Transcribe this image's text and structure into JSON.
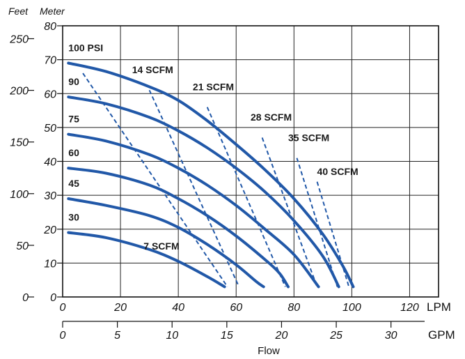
{
  "chart_data": {
    "type": "line",
    "axis_titles": {
      "feet": "Feet",
      "meter": "Meter",
      "flow": "Flow"
    },
    "units": {
      "lpm": "LPM",
      "gpm": "GPM"
    },
    "x_lpm": {
      "ticks": [
        0,
        20,
        40,
        60,
        80,
        100,
        120
      ],
      "range": [
        0,
        130
      ]
    },
    "x_gpm": {
      "ticks": [
        0,
        5,
        10,
        15,
        20,
        25,
        30
      ]
    },
    "y_meter": {
      "ticks": [
        0,
        10,
        20,
        30,
        40,
        50,
        60,
        70,
        80
      ],
      "range": [
        0,
        80
      ]
    },
    "y_feet": {
      "ticks": [
        0,
        50,
        100,
        150,
        200,
        250
      ]
    },
    "grid": true,
    "series": [
      {
        "name": "100 PSI",
        "points": [
          [
            2,
            69
          ],
          [
            15,
            66.5
          ],
          [
            30,
            62
          ],
          [
            40,
            58
          ],
          [
            50,
            52
          ],
          [
            60,
            45
          ],
          [
            70,
            37.5
          ],
          [
            80,
            29
          ],
          [
            90,
            18.5
          ],
          [
            97,
            9
          ],
          [
            100.5,
            3
          ]
        ]
      },
      {
        "name": "90",
        "points": [
          [
            2,
            59
          ],
          [
            15,
            57
          ],
          [
            30,
            53
          ],
          [
            40,
            49
          ],
          [
            50,
            44
          ],
          [
            60,
            38
          ],
          [
            70,
            31
          ],
          [
            80,
            22.5
          ],
          [
            90,
            12
          ],
          [
            95.5,
            3
          ]
        ]
      },
      {
        "name": "75",
        "points": [
          [
            2,
            48
          ],
          [
            15,
            46
          ],
          [
            30,
            42
          ],
          [
            40,
            38
          ],
          [
            50,
            33
          ],
          [
            60,
            27
          ],
          [
            70,
            20
          ],
          [
            80,
            12.5
          ],
          [
            88.5,
            3
          ]
        ]
      },
      {
        "name": "60",
        "points": [
          [
            2,
            38
          ],
          [
            15,
            36.5
          ],
          [
            30,
            33
          ],
          [
            40,
            29
          ],
          [
            50,
            24
          ],
          [
            60,
            18
          ],
          [
            70,
            11
          ],
          [
            75,
            7
          ],
          [
            78,
            3
          ]
        ]
      },
      {
        "name": "45",
        "points": [
          [
            2,
            29
          ],
          [
            15,
            27
          ],
          [
            30,
            24
          ],
          [
            40,
            20.5
          ],
          [
            50,
            15.5
          ],
          [
            60,
            9.5
          ],
          [
            67,
            4.5
          ],
          [
            69.5,
            3
          ]
        ]
      },
      {
        "name": "30",
        "points": [
          [
            2,
            19
          ],
          [
            15,
            17.5
          ],
          [
            30,
            14
          ],
          [
            40,
            10.5
          ],
          [
            50,
            6
          ],
          [
            56,
            3
          ]
        ]
      }
    ],
    "scfm_lines": [
      {
        "name": "7 SCFM",
        "points": [
          [
            7,
            66
          ],
          [
            57,
            3
          ]
        ]
      },
      {
        "name": "14 SCFM",
        "points": [
          [
            30,
            61
          ],
          [
            61,
            3
          ]
        ]
      },
      {
        "name": "21 SCFM",
        "points": [
          [
            50,
            56
          ],
          [
            77,
            3
          ]
        ]
      },
      {
        "name": "28 SCFM",
        "points": [
          [
            69,
            47
          ],
          [
            88,
            3
          ]
        ]
      },
      {
        "name": "35 SCFM",
        "points": [
          [
            81,
            41
          ],
          [
            95,
            3
          ]
        ]
      },
      {
        "name": "40 SCFM",
        "points": [
          [
            88,
            34
          ],
          [
            99,
            3
          ]
        ]
      }
    ]
  }
}
